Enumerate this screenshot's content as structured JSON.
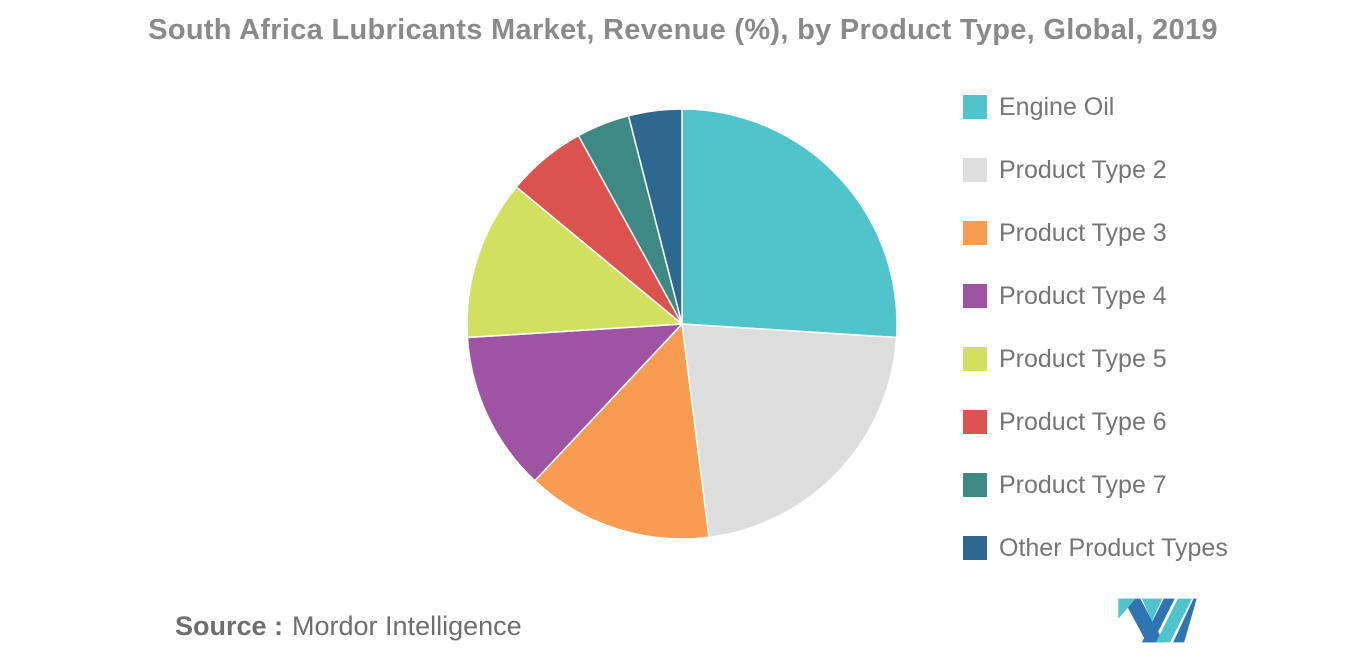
{
  "title": "South Africa Lubricants Market, Revenue (%), by Product Type, Global, 2019",
  "source": {
    "label": "Source :",
    "value": "Mordor Intelligence"
  },
  "chart_data": {
    "type": "pie",
    "title": "South Africa Lubricants Market, Revenue (%), by Product Type, Global, 2019",
    "unit": "%",
    "legend_position": "right",
    "start_angle_deg": 0,
    "direction": "clockwise",
    "value_labels_shown": false,
    "categories": [
      "Engine Oil",
      "Product Type 2",
      "Product Type 3",
      "Product Type 4",
      "Product Type 5",
      "Product Type 6",
      "Product Type 7",
      "Other Product Types"
    ],
    "values": [
      26,
      22,
      14,
      12,
      12,
      6,
      4,
      4
    ],
    "colors": [
      "#4FC4CB",
      "#DDDDDE",
      "#F89C51",
      "#9E53A3",
      "#D2E05F",
      "#DC524E",
      "#3E8983",
      "#2C6890"
    ]
  },
  "logo_colors": {
    "blue": "#2F74B3",
    "teal": "#50C4CC"
  }
}
